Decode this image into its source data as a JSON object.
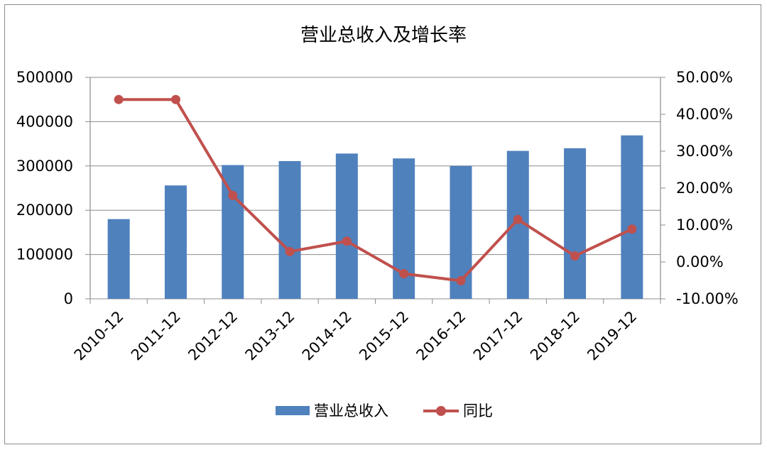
{
  "chart_data": {
    "type": "bar",
    "title": "营业总收入及增长率",
    "categories": [
      "2010-12",
      "2011-12",
      "2012-12",
      "2013-12",
      "2014-12",
      "2015-12",
      "2016-12",
      "2017-12",
      "2018-12",
      "2019-12"
    ],
    "series": [
      {
        "name": "营业总收入",
        "type": "bar",
        "axis": "left",
        "color": "#4f81bd",
        "values": [
          180000,
          256000,
          302000,
          311000,
          328000,
          317000,
          300000,
          334000,
          340000,
          369000
        ]
      },
      {
        "name": "同比",
        "type": "line",
        "axis": "right",
        "color": "#c0504d",
        "values": [
          44.0,
          44.0,
          18.0,
          2.8,
          5.6,
          -3.2,
          -5.1,
          11.5,
          1.6,
          8.9
        ]
      }
    ],
    "y_left": {
      "ylim": [
        0,
        500000
      ],
      "ticks": [
        "0",
        "100000",
        "200000",
        "300000",
        "400000",
        "500000"
      ]
    },
    "y_right": {
      "ylim": [
        -10,
        50
      ],
      "ticks": [
        "-10.00%",
        "0.00%",
        "10.00%",
        "20.00%",
        "30.00%",
        "40.00%",
        "50.00%"
      ]
    },
    "grid": "horizontal",
    "legend_position": "bottom"
  }
}
